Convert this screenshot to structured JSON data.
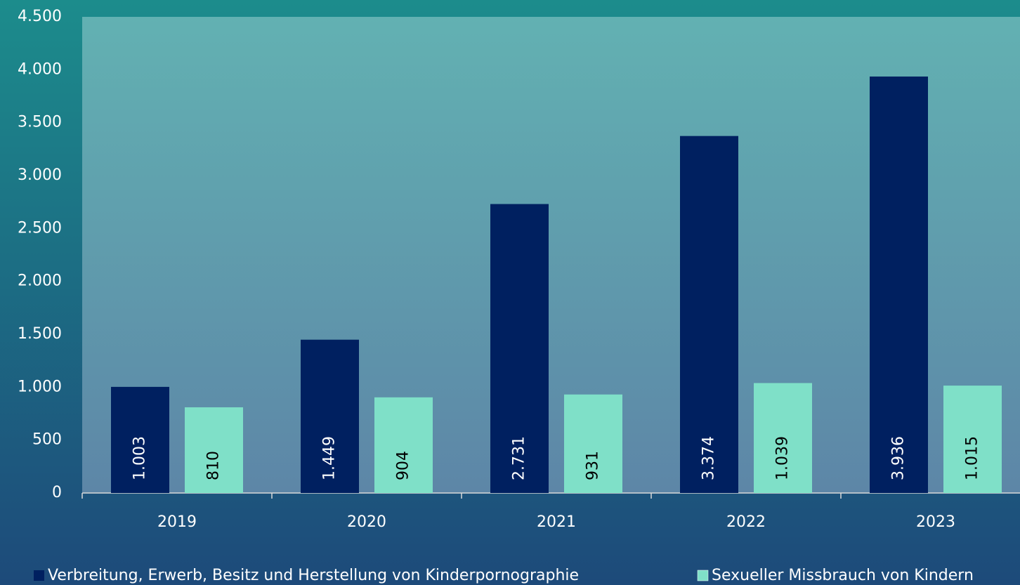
{
  "chart_data": {
    "type": "bar",
    "categories": [
      "2019",
      "2020",
      "2021",
      "2022",
      "2023"
    ],
    "series": [
      {
        "name": "Verbreitung, Erwerb, Besitz und Herstellung von Kinderpornographie",
        "color": "#002060",
        "values": [
          1003,
          1449,
          2731,
          3374,
          3936
        ],
        "value_labels": [
          "1.003",
          "1.449",
          "2.731",
          "3.374",
          "3.936"
        ]
      },
      {
        "name": "Sexueller Missbrauch von Kindern",
        "color": "#7fe0c8",
        "values": [
          810,
          904,
          931,
          1039,
          1015
        ],
        "value_labels": [
          "810",
          "904",
          "931",
          "1.039",
          "1.015"
        ]
      }
    ],
    "ylim": [
      0,
      4500
    ],
    "yticks": [
      0,
      500,
      {
        "value": 1000,
        "label": "1.000"
      },
      {
        "value": 1500,
        "label": "1.500"
      },
      {
        "value": 2000,
        "label": "2.000"
      },
      {
        "value": 2500,
        "label": "2.500"
      },
      {
        "value": 3000,
        "label": "3.000"
      },
      {
        "value": 3500,
        "label": "3.500"
      },
      {
        "value": 4000,
        "label": "4.000"
      },
      {
        "value": 4500,
        "label": "4.500"
      }
    ],
    "grid": false,
    "legend": "bottom"
  }
}
